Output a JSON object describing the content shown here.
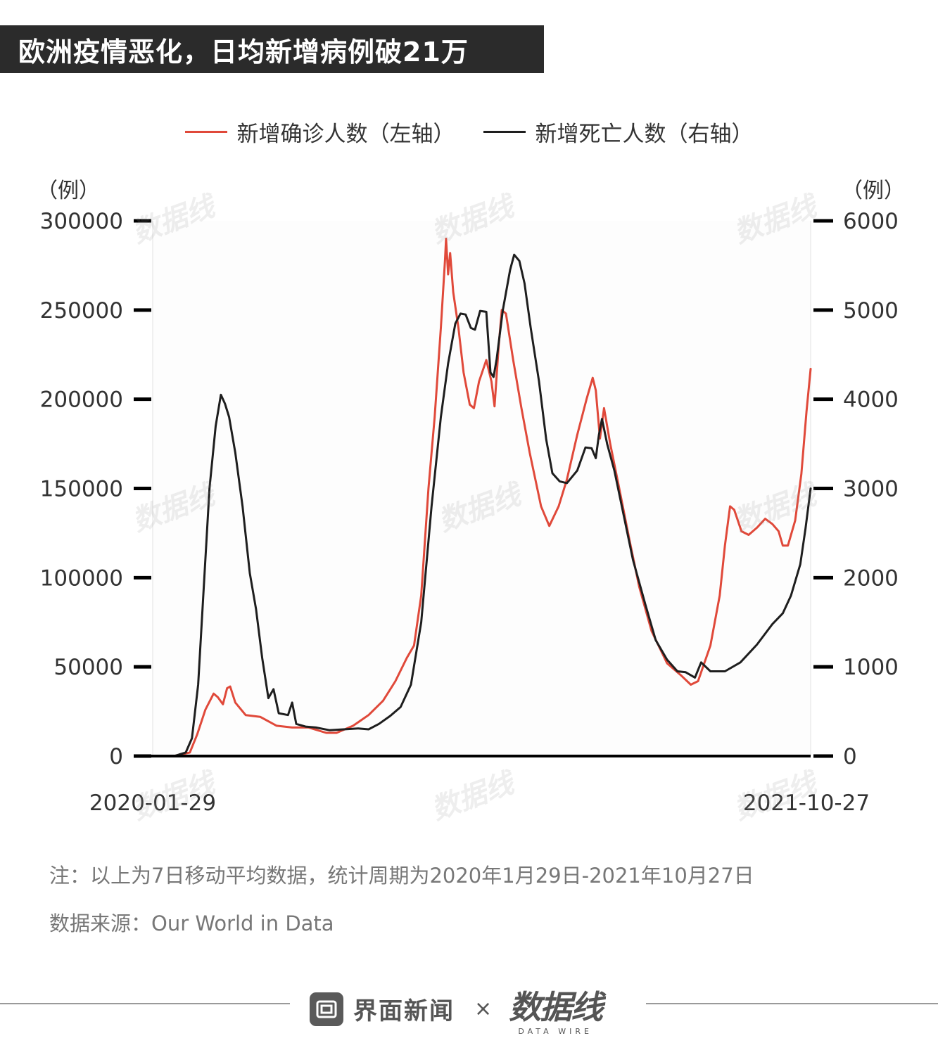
{
  "title": "欧洲疫情恶化，日均新增病例破21万",
  "legend": {
    "cases_label": "新增确诊人数（左轴）",
    "deaths_label": "新增死亡人数（右轴）"
  },
  "colors": {
    "cases": "#e0493a",
    "deaths": "#1e1e1e",
    "title_bg": "#2b2b2b"
  },
  "chart_data": {
    "type": "line",
    "x_start": "2020-01-29",
    "x_end": "2021-10-27",
    "xticks": [
      "2020-01-29",
      "2021-10-27"
    ],
    "y_left": {
      "label": "（例）",
      "range": [
        0,
        300000
      ],
      "ticks": [
        0,
        50000,
        100000,
        150000,
        200000,
        250000,
        300000
      ]
    },
    "y_right": {
      "label": "（例）",
      "range": [
        0,
        6000
      ],
      "ticks": [
        0,
        1000,
        2000,
        3000,
        4000,
        5000,
        6000
      ]
    },
    "series": [
      {
        "name": "新增确诊人数（左轴）",
        "axis": "left",
        "points": [
          [
            "2020-01-29",
            0
          ],
          [
            "2020-02-20",
            200
          ],
          [
            "2020-03-05",
            2000
          ],
          [
            "2020-03-12",
            12000
          ],
          [
            "2020-03-20",
            26000
          ],
          [
            "2020-03-28",
            35000
          ],
          [
            "2020-04-01",
            33000
          ],
          [
            "2020-04-06",
            29000
          ],
          [
            "2020-04-10",
            38000
          ],
          [
            "2020-04-13",
            39000
          ],
          [
            "2020-04-18",
            30000
          ],
          [
            "2020-04-28",
            23000
          ],
          [
            "2020-05-12",
            22000
          ],
          [
            "2020-05-28",
            17000
          ],
          [
            "2020-06-12",
            16000
          ],
          [
            "2020-06-28",
            16000
          ],
          [
            "2020-07-15",
            13000
          ],
          [
            "2020-07-25",
            13000
          ],
          [
            "2020-08-10",
            17000
          ],
          [
            "2020-08-25",
            23000
          ],
          [
            "2020-09-08",
            31000
          ],
          [
            "2020-09-20",
            42000
          ],
          [
            "2020-10-01",
            55000
          ],
          [
            "2020-10-08",
            62000
          ],
          [
            "2020-10-15",
            90000
          ],
          [
            "2020-10-22",
            150000
          ],
          [
            "2020-10-28",
            190000
          ],
          [
            "2020-11-03",
            240000
          ],
          [
            "2020-11-07",
            278000
          ],
          [
            "2020-11-08",
            290000
          ],
          [
            "2020-11-10",
            270000
          ],
          [
            "2020-11-12",
            282000
          ],
          [
            "2020-11-15",
            260000
          ],
          [
            "2020-11-20",
            240000
          ],
          [
            "2020-11-25",
            215000
          ],
          [
            "2020-12-01",
            197000
          ],
          [
            "2020-12-05",
            195000
          ],
          [
            "2020-12-10",
            210000
          ],
          [
            "2020-12-17",
            222000
          ],
          [
            "2020-12-22",
            210000
          ],
          [
            "2020-12-25",
            196000
          ],
          [
            "2020-12-29",
            230000
          ],
          [
            "2021-01-01",
            250000
          ],
          [
            "2021-01-05",
            248000
          ],
          [
            "2021-01-12",
            222000
          ],
          [
            "2021-01-20",
            195000
          ],
          [
            "2021-01-28",
            170000
          ],
          [
            "2021-02-08",
            140000
          ],
          [
            "2021-02-16",
            129000
          ],
          [
            "2021-02-25",
            140000
          ],
          [
            "2021-03-05",
            155000
          ],
          [
            "2021-03-15",
            180000
          ],
          [
            "2021-03-24",
            200000
          ],
          [
            "2021-03-30",
            212000
          ],
          [
            "2021-04-02",
            205000
          ],
          [
            "2021-04-06",
            178000
          ],
          [
            "2021-04-10",
            195000
          ],
          [
            "2021-04-16",
            175000
          ],
          [
            "2021-04-24",
            152000
          ],
          [
            "2021-05-05",
            120000
          ],
          [
            "2021-05-14",
            95000
          ],
          [
            "2021-05-26",
            70000
          ],
          [
            "2021-06-10",
            52000
          ],
          [
            "2021-06-24",
            45000
          ],
          [
            "2021-07-03",
            40000
          ],
          [
            "2021-07-10",
            42000
          ],
          [
            "2021-07-22",
            62000
          ],
          [
            "2021-07-31",
            90000
          ],
          [
            "2021-08-05",
            118000
          ],
          [
            "2021-08-10",
            140000
          ],
          [
            "2021-08-14",
            138000
          ],
          [
            "2021-08-21",
            126000
          ],
          [
            "2021-08-28",
            124000
          ],
          [
            "2021-09-05",
            128000
          ],
          [
            "2021-09-13",
            133000
          ],
          [
            "2021-09-20",
            130000
          ],
          [
            "2021-09-26",
            126000
          ],
          [
            "2021-09-30",
            118000
          ],
          [
            "2021-10-05",
            118000
          ],
          [
            "2021-10-12",
            132000
          ],
          [
            "2021-10-18",
            158000
          ],
          [
            "2021-10-23",
            193000
          ],
          [
            "2021-10-27",
            217000
          ]
        ]
      },
      {
        "name": "新增死亡人数（右轴）",
        "axis": "right",
        "points": [
          [
            "2020-01-29",
            0
          ],
          [
            "2020-02-20",
            5
          ],
          [
            "2020-03-01",
            40
          ],
          [
            "2020-03-07",
            200
          ],
          [
            "2020-03-13",
            800
          ],
          [
            "2020-03-18",
            1800
          ],
          [
            "2020-03-24",
            3000
          ],
          [
            "2020-03-30",
            3700
          ],
          [
            "2020-04-04",
            4050
          ],
          [
            "2020-04-08",
            3950
          ],
          [
            "2020-04-12",
            3800
          ],
          [
            "2020-04-18",
            3400
          ],
          [
            "2020-04-25",
            2800
          ],
          [
            "2020-05-02",
            2050
          ],
          [
            "2020-05-08",
            1650
          ],
          [
            "2020-05-14",
            1100
          ],
          [
            "2020-05-20",
            650
          ],
          [
            "2020-05-25",
            750
          ],
          [
            "2020-05-30",
            480
          ],
          [
            "2020-06-08",
            460
          ],
          [
            "2020-06-12",
            600
          ],
          [
            "2020-06-16",
            360
          ],
          [
            "2020-06-25",
            330
          ],
          [
            "2020-07-05",
            320
          ],
          [
            "2020-07-18",
            290
          ],
          [
            "2020-08-01",
            300
          ],
          [
            "2020-08-15",
            310
          ],
          [
            "2020-08-25",
            300
          ],
          [
            "2020-09-04",
            360
          ],
          [
            "2020-09-15",
            450
          ],
          [
            "2020-09-25",
            550
          ],
          [
            "2020-10-05",
            800
          ],
          [
            "2020-10-15",
            1500
          ],
          [
            "2020-10-25",
            2800
          ],
          [
            "2020-11-03",
            3800
          ],
          [
            "2020-11-10",
            4400
          ],
          [
            "2020-11-17",
            4850
          ],
          [
            "2020-11-22",
            4960
          ],
          [
            "2020-11-27",
            4950
          ],
          [
            "2020-12-02",
            4800
          ],
          [
            "2020-12-06",
            4780
          ],
          [
            "2020-12-11",
            4990
          ],
          [
            "2020-12-17",
            4980
          ],
          [
            "2020-12-21",
            4300
          ],
          [
            "2020-12-24",
            4250
          ],
          [
            "2020-12-27",
            4450
          ],
          [
            "2021-01-02",
            5000
          ],
          [
            "2021-01-09",
            5450
          ],
          [
            "2021-01-13",
            5620
          ],
          [
            "2021-01-18",
            5550
          ],
          [
            "2021-01-23",
            5300
          ],
          [
            "2021-01-29",
            4800
          ],
          [
            "2021-02-06",
            4200
          ],
          [
            "2021-02-13",
            3550
          ],
          [
            "2021-02-19",
            3170
          ],
          [
            "2021-02-26",
            3080
          ],
          [
            "2021-03-05",
            3060
          ],
          [
            "2021-03-15",
            3200
          ],
          [
            "2021-03-23",
            3460
          ],
          [
            "2021-03-29",
            3450
          ],
          [
            "2021-04-02",
            3340
          ],
          [
            "2021-04-05",
            3600
          ],
          [
            "2021-04-08",
            3780
          ],
          [
            "2021-04-13",
            3500
          ],
          [
            "2021-04-20",
            3200
          ],
          [
            "2021-04-29",
            2700
          ],
          [
            "2021-05-08",
            2200
          ],
          [
            "2021-05-20",
            1700
          ],
          [
            "2021-05-30",
            1300
          ],
          [
            "2021-06-10",
            1080
          ],
          [
            "2021-06-20",
            950
          ],
          [
            "2021-06-28",
            940
          ],
          [
            "2021-07-07",
            880
          ],
          [
            "2021-07-13",
            1050
          ],
          [
            "2021-07-22",
            950
          ],
          [
            "2021-08-05",
            950
          ],
          [
            "2021-08-20",
            1050
          ],
          [
            "2021-09-05",
            1250
          ],
          [
            "2021-09-20",
            1480
          ],
          [
            "2021-09-30",
            1600
          ],
          [
            "2021-10-08",
            1800
          ],
          [
            "2021-10-17",
            2150
          ],
          [
            "2021-10-22",
            2550
          ],
          [
            "2021-10-27",
            3000
          ]
        ]
      }
    ]
  },
  "note": "注：以上为7日移动平均数据，统计周期为2020年1月29日-2021年10月27日",
  "source": "数据来源：Our World in Data",
  "footer": {
    "brand": "界面新闻",
    "times": "×",
    "datawire_main": "数据线",
    "datawire_sub": "DATA WIRE"
  },
  "watermark": {
    "main": "数据线",
    "sub": "DATA WIRE"
  }
}
